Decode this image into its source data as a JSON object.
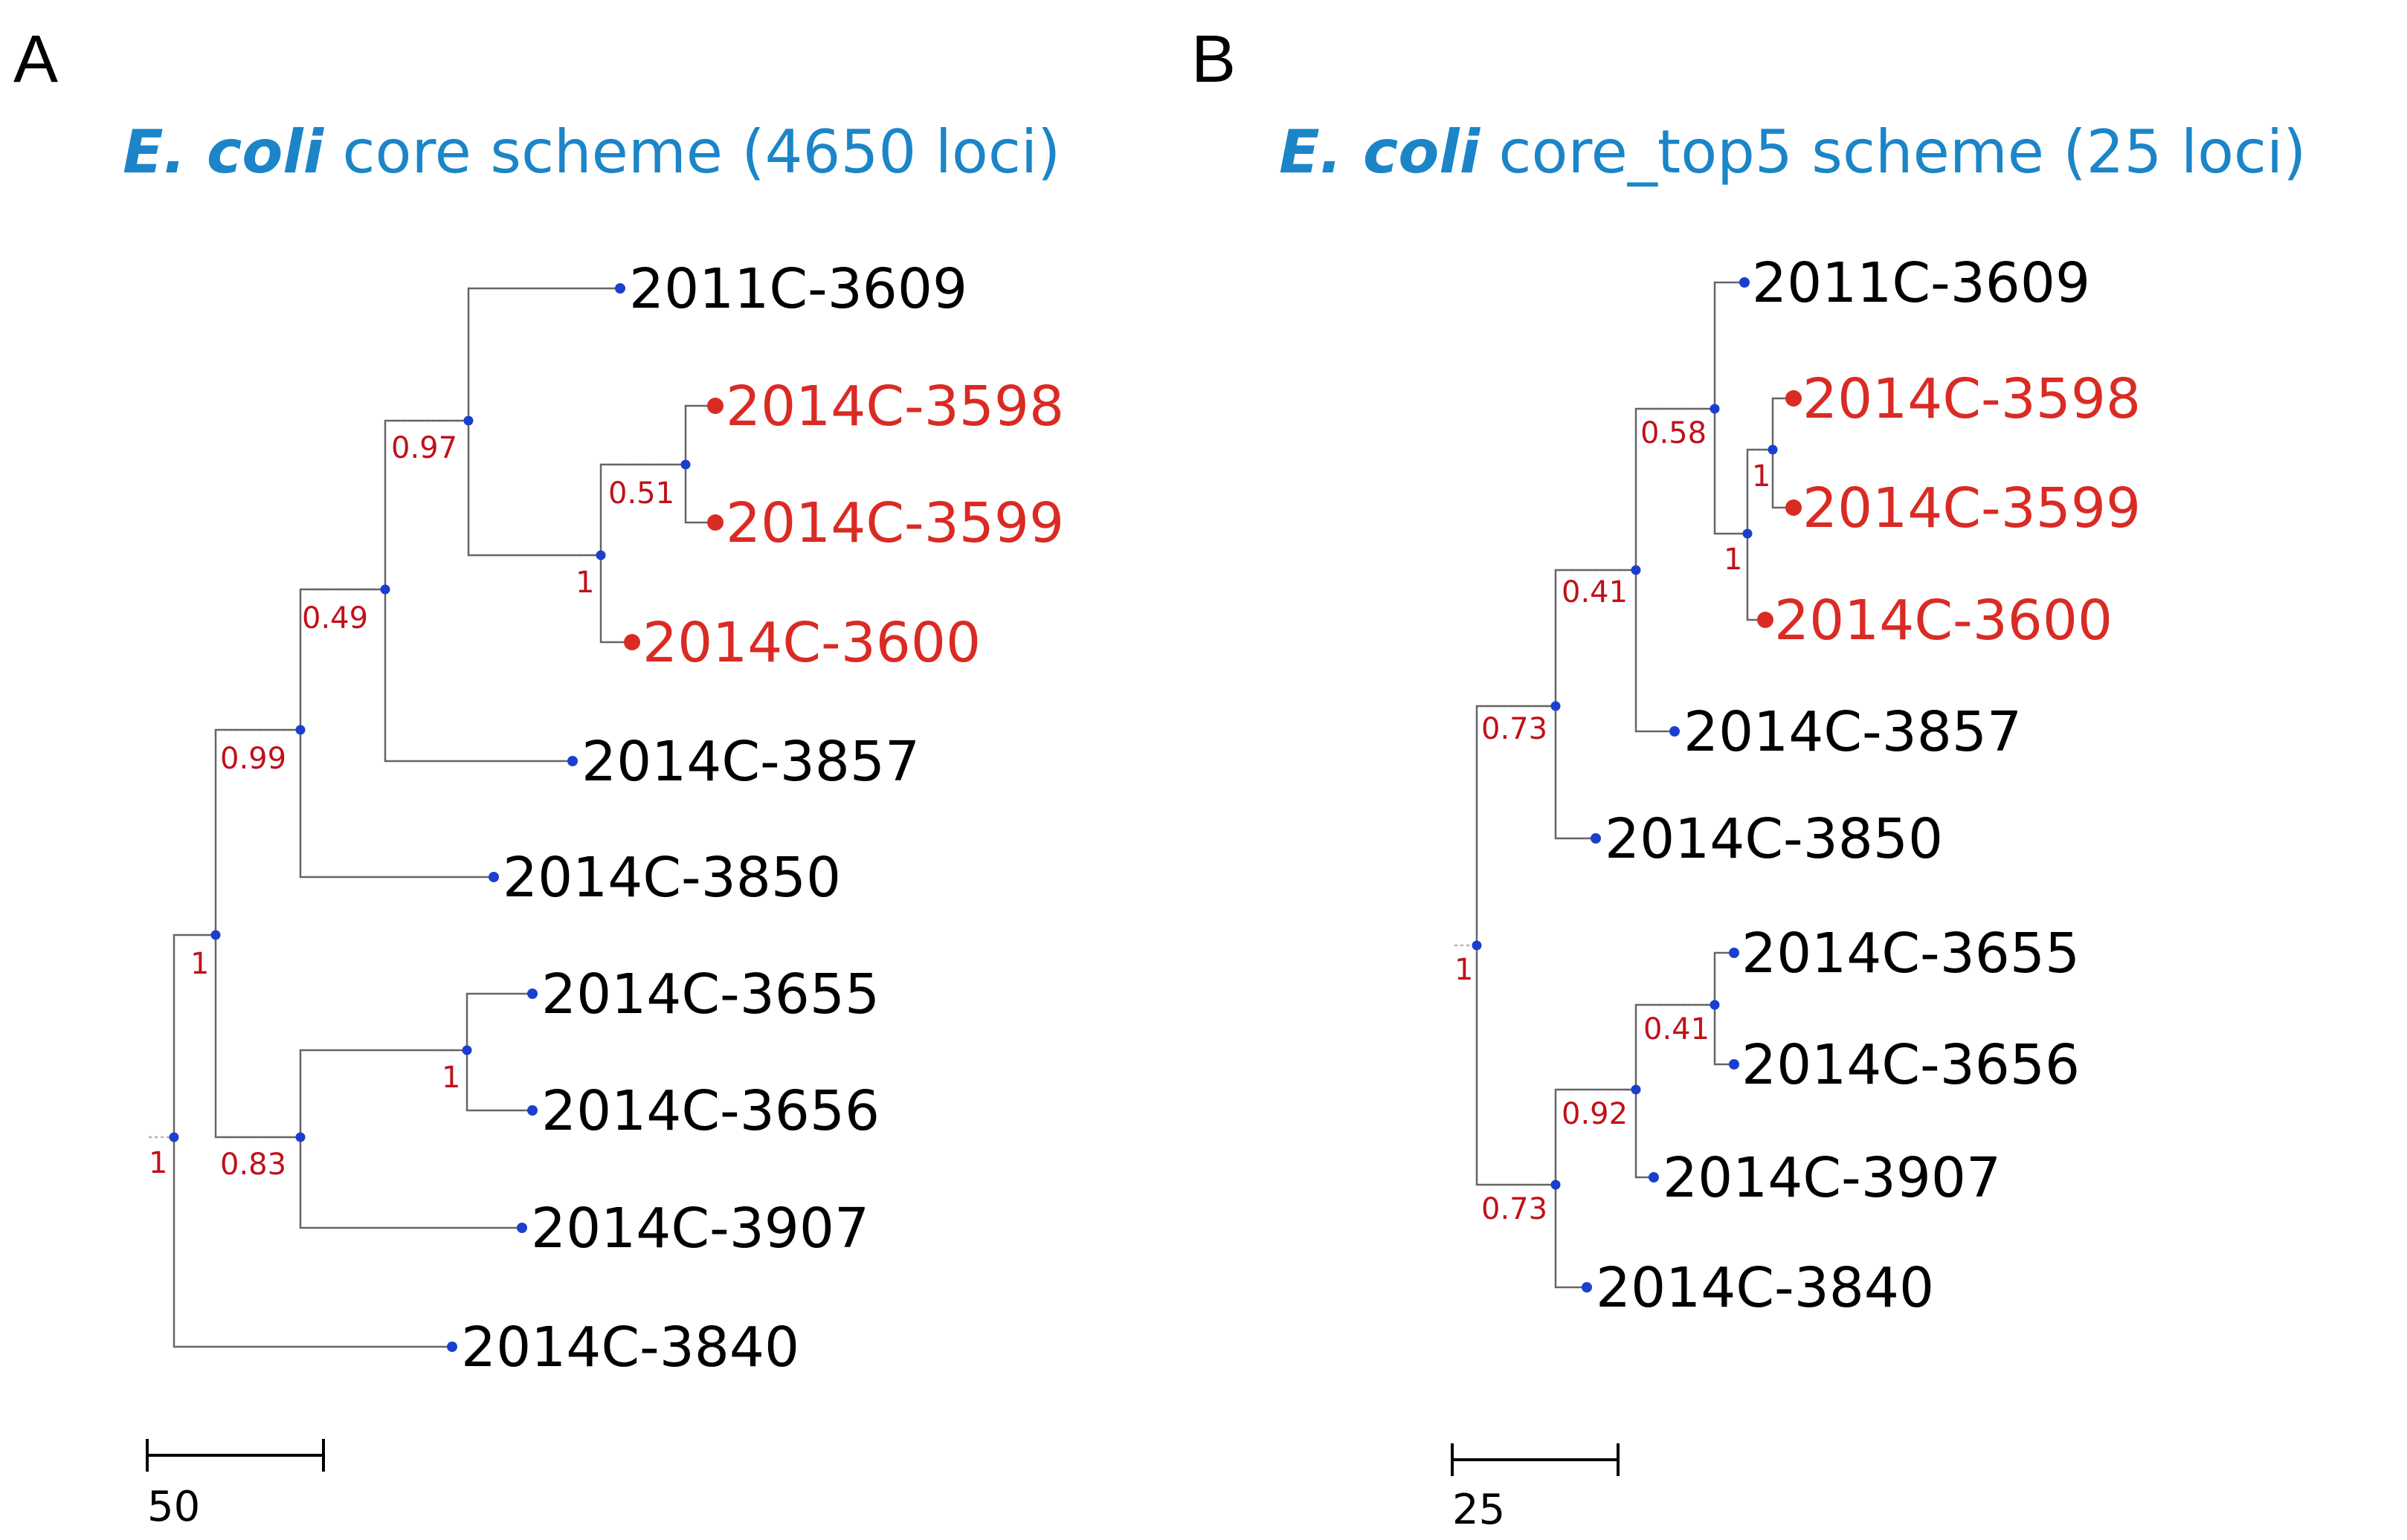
{
  "panels": [
    {
      "letter": "A",
      "title_species": "E. coli",
      "title_rest": " core scheme (4650 loci)",
      "tips": [
        {
          "label": "2011C-3609",
          "highlight": false
        },
        {
          "label": "2014C-3598",
          "highlight": true
        },
        {
          "label": "2014C-3599",
          "highlight": true
        },
        {
          "label": "2014C-3600",
          "highlight": true
        },
        {
          "label": "2014C-3857",
          "highlight": false
        },
        {
          "label": "2014C-3850",
          "highlight": false
        },
        {
          "label": "2014C-3655",
          "highlight": false
        },
        {
          "label": "2014C-3656",
          "highlight": false
        },
        {
          "label": "2014C-3907",
          "highlight": false
        },
        {
          "label": "2014C-3840",
          "highlight": false
        }
      ],
      "supports": [
        "1",
        "1",
        "0.99",
        "0.49",
        "0.97",
        "1",
        "0.51",
        "0.83",
        "1"
      ],
      "scale_label": "50"
    },
    {
      "letter": "B",
      "title_species": "E. coli",
      "title_rest": " core_top5 scheme (25 loci)",
      "tips": [
        {
          "label": "2011C-3609",
          "highlight": false
        },
        {
          "label": "2014C-3598",
          "highlight": true
        },
        {
          "label": "2014C-3599",
          "highlight": true
        },
        {
          "label": "2014C-3600",
          "highlight": true
        },
        {
          "label": "2014C-3857",
          "highlight": false
        },
        {
          "label": "2014C-3850",
          "highlight": false
        },
        {
          "label": "2014C-3655",
          "highlight": false
        },
        {
          "label": "2014C-3656",
          "highlight": false
        },
        {
          "label": "2014C-3907",
          "highlight": false
        },
        {
          "label": "2014C-3840",
          "highlight": false
        }
      ],
      "supports": [
        "1",
        "0.73",
        "0.41",
        "0.58",
        "1",
        "1",
        "0.73",
        "0.92",
        "0.41"
      ],
      "scale_label": "25"
    }
  ],
  "colors": {
    "title": "#1b85c8",
    "highlight": "#d92b24",
    "support": "#c0111a",
    "node": "#1a3fcf"
  }
}
